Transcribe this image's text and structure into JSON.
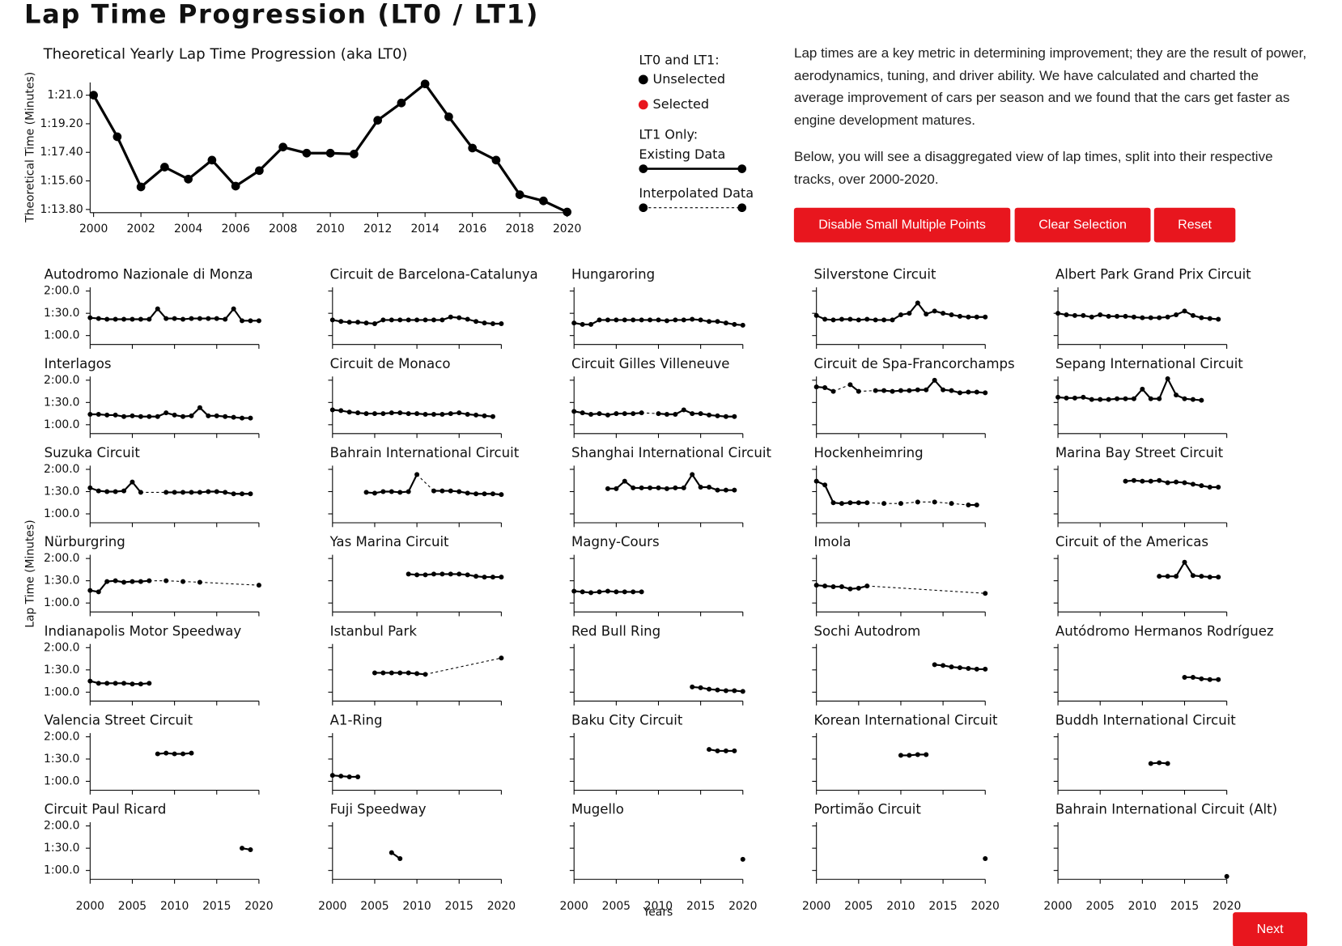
{
  "header": {
    "title": "Lap Time Progression (LT0 / LT1)"
  },
  "description": [
    "Lap times are a key metric in determining improvement; they are the result of power, aerodynamics, tuning, and driver ability. We have calculated and charted the average improvement of cars per season and we found that the cars get faster as engine development matures.",
    "Below, you will see a disaggregated view of lap times, split into their respective tracks, over 2000-2020."
  ],
  "buttons": [
    "Disable Small Multiple Points",
    "Clear Selection",
    "Reset"
  ],
  "next_button": "Next",
  "legend": {
    "heading": "LT0 and LT1:",
    "items": [
      {
        "label": "Unselected",
        "color": "#000000"
      },
      {
        "label": "Selected",
        "color": "#e8161e"
      }
    ],
    "heading2": "LT1 Only:",
    "lines": [
      {
        "label": "Existing Data",
        "dashed": false
      },
      {
        "label": "Interpolated Data",
        "dashed": true
      }
    ]
  },
  "chart_data": [
    {
      "type": "line",
      "title": "Theoretical Yearly Lap Time Progression (aka LT0)",
      "ylabel": "Theoretical Time (Minutes)",
      "x": [
        2000,
        2001,
        2002,
        2003,
        2004,
        2005,
        2006,
        2007,
        2008,
        2009,
        2010,
        2011,
        2012,
        2013,
        2014,
        2015,
        2016,
        2017,
        2018,
        2019,
        2020
      ],
      "values": [
        81.0,
        78.38,
        75.22,
        76.47,
        75.71,
        76.91,
        75.27,
        76.25,
        77.73,
        77.35,
        77.35,
        77.29,
        79.42,
        80.51,
        81.71,
        79.64,
        77.67,
        76.91,
        74.73,
        74.34,
        73.64
      ],
      "color": "#000000",
      "xlim": [
        2000,
        2020
      ],
      "xticks": [
        2000,
        2002,
        2004,
        2006,
        2008,
        2010,
        2012,
        2014,
        2016,
        2018,
        2020
      ],
      "ylim": [
        73.6,
        81.8
      ],
      "yticks": [
        {
          "value": 81.0,
          "label": "1:21.0"
        },
        {
          "value": 79.2,
          "label": "1:19.20"
        },
        {
          "value": 77.4,
          "label": "1:17.40"
        },
        {
          "value": 75.6,
          "label": "1:15.60"
        },
        {
          "value": 73.8,
          "label": "1:13.80"
        }
      ]
    },
    {
      "type": "small-multiples",
      "ylabel": "Lap Time (Minutes)",
      "xlabel": "Years",
      "color": "#000000",
      "x": [
        2000,
        2001,
        2002,
        2003,
        2004,
        2005,
        2006,
        2007,
        2008,
        2009,
        2010,
        2011,
        2012,
        2013,
        2014,
        2015,
        2016,
        2017,
        2018,
        2019,
        2020
      ],
      "xlim": [
        2000,
        2020
      ],
      "xticks": [
        2000,
        2005,
        2010,
        2015,
        2020
      ],
      "ylim": [
        48,
        125
      ],
      "yticks": [
        {
          "value": 120,
          "label": "2:00.0"
        },
        {
          "value": 90,
          "label": "1:30.0"
        },
        {
          "value": 60,
          "label": "1:00.0"
        }
      ],
      "panels": [
        {
          "title": "Autodromo Nazionale di Monza",
          "values": [
            84,
            83,
            82,
            82,
            82,
            82,
            82,
            82,
            96,
            83,
            83,
            82,
            83,
            83,
            83,
            83,
            82,
            96,
            80,
            80,
            80
          ]
        },
        {
          "title": "Circuit de Barcelona-Catalunya",
          "values": [
            81,
            79,
            78,
            78,
            77,
            76,
            81,
            81,
            81,
            81,
            81,
            81,
            81,
            81,
            85,
            84,
            82,
            79,
            77,
            76,
            76
          ]
        },
        {
          "title": "Hungaroring",
          "values": [
            77,
            75,
            75,
            81,
            81,
            81,
            81,
            81,
            81,
            81,
            81,
            80,
            81,
            81,
            82,
            81,
            79,
            79,
            77,
            75,
            74
          ]
        },
        {
          "title": "Silverstone Circuit",
          "values": [
            87,
            82,
            81,
            82,
            82,
            81,
            82,
            81,
            81,
            81,
            88,
            90,
            104,
            89,
            93,
            90,
            88,
            86,
            85,
            85,
            85
          ]
        },
        {
          "title": "Albert Park Grand Prix Circuit",
          "values": [
            90,
            88,
            87,
            87,
            85,
            88,
            86,
            86,
            86,
            85,
            84,
            84,
            84,
            85,
            88,
            93,
            87,
            84,
            83,
            82,
            null
          ]
        },
        {
          "title": "Interlagos",
          "values": [
            74,
            74,
            73,
            73,
            71,
            72,
            71,
            71,
            71,
            76,
            73,
            71,
            72,
            83,
            72,
            72,
            71,
            70,
            69,
            69,
            null
          ]
        },
        {
          "title": "Circuit de Monaco",
          "values": [
            80,
            79,
            77,
            76,
            75,
            75,
            75,
            76,
            76,
            75,
            75,
            74,
            74,
            74,
            75,
            76,
            74,
            73,
            72,
            71,
            null
          ]
        },
        {
          "title": "Circuit Gilles Villeneuve",
          "values": [
            78,
            76,
            74,
            75,
            73,
            75,
            75,
            75,
            76,
            null,
            75,
            74,
            74,
            80,
            75,
            75,
            73,
            72,
            71,
            71,
            null
          ]
        },
        {
          "title": "Circuit de Spa-Francorchamps",
          "values": [
            111,
            110,
            105,
            null,
            114,
            105,
            null,
            106,
            106,
            105,
            106,
            106,
            107,
            107,
            120,
            107,
            106,
            103,
            104,
            104,
            103
          ]
        },
        {
          "title": "Sepang International Circuit",
          "values": [
            97,
            96,
            96,
            97,
            94,
            94,
            94,
            95,
            95,
            95,
            108,
            95,
            95,
            122,
            100,
            95,
            94,
            93,
            null,
            null,
            null
          ]
        },
        {
          "title": "Suzuka Circuit",
          "values": [
            95,
            91,
            90,
            90,
            91,
            103,
            89,
            null,
            null,
            89,
            89,
            89,
            89,
            89,
            90,
            90,
            89,
            87,
            87,
            87,
            null
          ]
        },
        {
          "title": "Bahrain International Circuit",
          "values": [
            null,
            null,
            null,
            null,
            89,
            88,
            90,
            90,
            89,
            90,
            113,
            null,
            91,
            91,
            91,
            90,
            88,
            87,
            87,
            87,
            86
          ]
        },
        {
          "title": "Shanghai International Circuit",
          "values": [
            null,
            null,
            null,
            null,
            94,
            94,
            104,
            95,
            95,
            95,
            95,
            94,
            95,
            95,
            113,
            96,
            96,
            92,
            92,
            92,
            null
          ]
        },
        {
          "title": "Hockenheimring",
          "values": [
            104,
            99,
            75,
            74,
            75,
            75,
            75,
            null,
            74,
            null,
            74,
            null,
            76,
            null,
            76,
            null,
            74,
            null,
            72,
            72,
            null
          ]
        },
        {
          "title": "Marina Bay Street Circuit",
          "values": [
            null,
            null,
            null,
            null,
            null,
            null,
            null,
            null,
            104,
            105,
            104,
            104,
            105,
            102,
            103,
            102,
            100,
            98,
            96,
            96,
            null
          ]
        },
        {
          "title": "Nürburgring",
          "values": [
            77,
            75,
            89,
            90,
            88,
            89,
            89,
            90,
            null,
            90,
            null,
            89,
            null,
            88,
            null,
            null,
            null,
            null,
            null,
            null,
            84
          ]
        },
        {
          "title": "Yas Marina Circuit",
          "values": [
            null,
            null,
            null,
            null,
            null,
            null,
            null,
            null,
            null,
            99,
            98,
            98,
            99,
            99,
            99,
            99,
            98,
            96,
            95,
            95,
            95
          ]
        },
        {
          "title": "Magny-Cours",
          "values": [
            76,
            75,
            74,
            75,
            76,
            75,
            75,
            75,
            75,
            null,
            null,
            null,
            null,
            null,
            null,
            null,
            null,
            null,
            null,
            null,
            null
          ]
        },
        {
          "title": "Imola",
          "values": [
            84,
            83,
            82,
            82,
            79,
            80,
            83,
            null,
            null,
            null,
            null,
            null,
            null,
            null,
            null,
            null,
            null,
            null,
            null,
            null,
            73
          ]
        },
        {
          "title": "Circuit of the Americas",
          "values": [
            null,
            null,
            null,
            null,
            null,
            null,
            null,
            null,
            null,
            null,
            null,
            null,
            96,
            96,
            96,
            115,
            97,
            96,
            95,
            95,
            null
          ]
        },
        {
          "title": "Indianapolis Motor Speedway",
          "values": [
            75,
            72,
            72,
            72,
            72,
            71,
            71,
            72,
            null,
            null,
            null,
            null,
            null,
            null,
            null,
            null,
            null,
            null,
            null,
            null,
            null
          ]
        },
        {
          "title": "Istanbul Park",
          "values": [
            null,
            null,
            null,
            null,
            null,
            86,
            86,
            86,
            86,
            86,
            85,
            84,
            null,
            null,
            null,
            null,
            null,
            null,
            null,
            null,
            106
          ]
        },
        {
          "title": "Red Bull Ring",
          "values": [
            null,
            null,
            null,
            null,
            null,
            null,
            null,
            null,
            null,
            null,
            null,
            null,
            null,
            null,
            67,
            66,
            64,
            63,
            62,
            62,
            61
          ]
        },
        {
          "title": "Sochi Autodrom",
          "values": [
            null,
            null,
            null,
            null,
            null,
            null,
            null,
            null,
            null,
            null,
            null,
            null,
            null,
            null,
            97,
            96,
            94,
            93,
            92,
            91,
            91
          ]
        },
        {
          "title": "Autódromo Hermanos Rodríguez",
          "values": [
            null,
            null,
            null,
            null,
            null,
            null,
            null,
            null,
            null,
            null,
            null,
            null,
            null,
            null,
            null,
            80,
            80,
            78,
            77,
            77,
            null
          ]
        },
        {
          "title": "Valencia Street Circuit",
          "values": [
            null,
            null,
            null,
            null,
            null,
            null,
            null,
            null,
            97,
            98,
            97,
            97,
            98,
            null,
            null,
            null,
            null,
            null,
            null,
            null,
            null
          ]
        },
        {
          "title": "A1-Ring",
          "values": [
            68,
            67,
            66,
            66,
            null,
            null,
            null,
            null,
            null,
            null,
            null,
            null,
            null,
            null,
            null,
            null,
            null,
            null,
            null,
            null,
            null
          ]
        },
        {
          "title": "Baku City Circuit",
          "values": [
            null,
            null,
            null,
            null,
            null,
            null,
            null,
            null,
            null,
            null,
            null,
            null,
            null,
            null,
            null,
            null,
            103,
            101,
            101,
            101,
            null
          ]
        },
        {
          "title": "Korean International Circuit",
          "values": [
            null,
            null,
            null,
            null,
            null,
            null,
            null,
            null,
            null,
            null,
            95,
            95,
            96,
            96,
            null,
            null,
            null,
            null,
            null,
            null,
            null
          ]
        },
        {
          "title": "Buddh International Circuit",
          "values": [
            null,
            null,
            null,
            null,
            null,
            null,
            null,
            null,
            null,
            null,
            null,
            84,
            85,
            84,
            null,
            null,
            null,
            null,
            null,
            null,
            null
          ]
        },
        {
          "title": "Circuit Paul Ricard",
          "values": [
            null,
            null,
            null,
            null,
            null,
            null,
            null,
            null,
            null,
            null,
            null,
            null,
            null,
            null,
            null,
            null,
            null,
            null,
            90,
            88,
            null
          ]
        },
        {
          "title": "Fuji Speedway",
          "values": [
            null,
            null,
            null,
            null,
            null,
            null,
            null,
            84,
            76,
            null,
            null,
            null,
            null,
            null,
            null,
            null,
            null,
            null,
            null,
            null,
            null
          ]
        },
        {
          "title": "Mugello",
          "values": [
            null,
            null,
            null,
            null,
            null,
            null,
            null,
            null,
            null,
            null,
            null,
            null,
            null,
            null,
            null,
            null,
            null,
            null,
            null,
            null,
            75
          ]
        },
        {
          "title": "Portimão Circuit",
          "values": [
            null,
            null,
            null,
            null,
            null,
            null,
            null,
            null,
            null,
            null,
            null,
            null,
            null,
            null,
            null,
            null,
            null,
            null,
            null,
            null,
            76
          ]
        },
        {
          "title": "Bahrain International Circuit (Alt)",
          "values": [
            null,
            null,
            null,
            null,
            null,
            null,
            null,
            null,
            null,
            null,
            null,
            null,
            null,
            null,
            null,
            null,
            null,
            null,
            null,
            null,
            52
          ]
        }
      ]
    }
  ]
}
